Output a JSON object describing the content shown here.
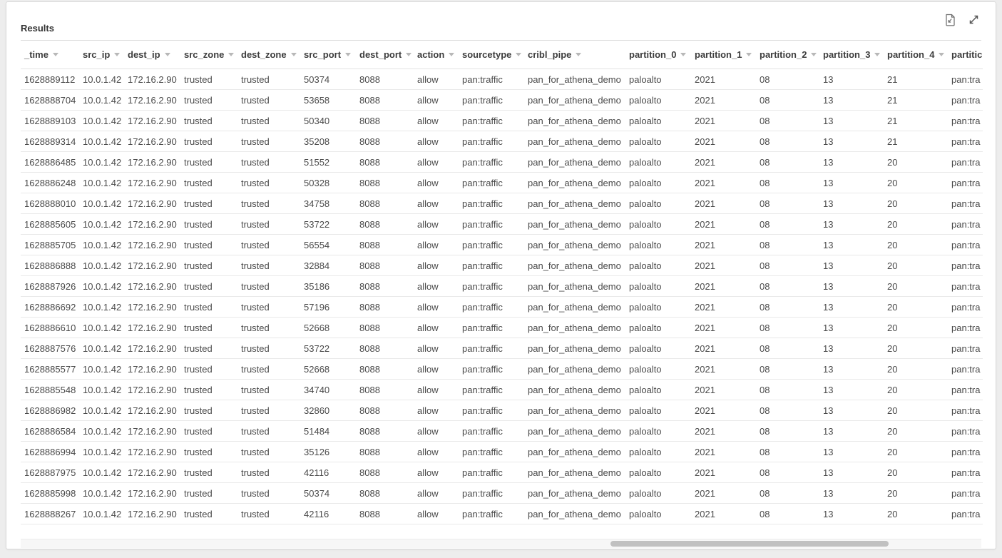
{
  "panel": {
    "title": "Results"
  },
  "toolbar": {
    "export_icon": "document-export",
    "expand_icon": "expand-diagonal"
  },
  "colors": {
    "page_background": "#ededed",
    "card_border": "#d9d9d9",
    "header_text": "#3c3c3c",
    "cell_text": "#4a4a4a",
    "row_border": "#e9e9e9",
    "sort_arrow": "#b8b8b8",
    "scrollbar_thumb": "#c1c1c1"
  },
  "table": {
    "columns": [
      {
        "key": "_time",
        "label": "_time",
        "sort_icon": true
      },
      {
        "key": "src_ip",
        "label": "src_ip",
        "sort_icon": true
      },
      {
        "key": "dest_ip",
        "label": "dest_ip",
        "sort_icon": true
      },
      {
        "key": "src_zone",
        "label": "src_zone",
        "sort_icon": true
      },
      {
        "key": "dest_zone",
        "label": "dest_zone",
        "sort_icon": true
      },
      {
        "key": "src_port",
        "label": "src_port",
        "sort_icon": true
      },
      {
        "key": "dest_port",
        "label": "dest_port",
        "sort_icon": true
      },
      {
        "key": "action",
        "label": "action",
        "sort_icon": true
      },
      {
        "key": "sourcetype",
        "label": "sourcetype",
        "sort_icon": true
      },
      {
        "key": "cribl_pipe",
        "label": "cribl_pipe",
        "sort_icon": true
      },
      {
        "key": "partition_0",
        "label": "partition_0",
        "sort_icon": true
      },
      {
        "key": "partition_1",
        "label": "partition_1",
        "sort_icon": true
      },
      {
        "key": "partition_2",
        "label": "partition_2",
        "sort_icon": true
      },
      {
        "key": "partition_3",
        "label": "partition_3",
        "sort_icon": true
      },
      {
        "key": "partition_4",
        "label": "partition_4",
        "sort_icon": true
      },
      {
        "key": "partition_trunc",
        "label": "partitic",
        "sort_icon": false
      }
    ],
    "rows": [
      [
        "1628889112",
        "10.0.1.42",
        "172.16.2.90",
        "trusted",
        "trusted",
        "50374",
        "8088",
        "allow",
        "pan:traffic",
        "pan_for_athena_demo",
        "paloalto",
        "2021",
        "08",
        "13",
        "21",
        "pan:tra"
      ],
      [
        "1628888704",
        "10.0.1.42",
        "172.16.2.90",
        "trusted",
        "trusted",
        "53658",
        "8088",
        "allow",
        "pan:traffic",
        "pan_for_athena_demo",
        "paloalto",
        "2021",
        "08",
        "13",
        "21",
        "pan:tra"
      ],
      [
        "1628889103",
        "10.0.1.42",
        "172.16.2.90",
        "trusted",
        "trusted",
        "50340",
        "8088",
        "allow",
        "pan:traffic",
        "pan_for_athena_demo",
        "paloalto",
        "2021",
        "08",
        "13",
        "21",
        "pan:tra"
      ],
      [
        "1628889314",
        "10.0.1.42",
        "172.16.2.90",
        "trusted",
        "trusted",
        "35208",
        "8088",
        "allow",
        "pan:traffic",
        "pan_for_athena_demo",
        "paloalto",
        "2021",
        "08",
        "13",
        "21",
        "pan:tra"
      ],
      [
        "1628886485",
        "10.0.1.42",
        "172.16.2.90",
        "trusted",
        "trusted",
        "51552",
        "8088",
        "allow",
        "pan:traffic",
        "pan_for_athena_demo",
        "paloalto",
        "2021",
        "08",
        "13",
        "20",
        "pan:tra"
      ],
      [
        "1628886248",
        "10.0.1.42",
        "172.16.2.90",
        "trusted",
        "trusted",
        "50328",
        "8088",
        "allow",
        "pan:traffic",
        "pan_for_athena_demo",
        "paloalto",
        "2021",
        "08",
        "13",
        "20",
        "pan:tra"
      ],
      [
        "1628888010",
        "10.0.1.42",
        "172.16.2.90",
        "trusted",
        "trusted",
        "34758",
        "8088",
        "allow",
        "pan:traffic",
        "pan_for_athena_demo",
        "paloalto",
        "2021",
        "08",
        "13",
        "20",
        "pan:tra"
      ],
      [
        "1628885605",
        "10.0.1.42",
        "172.16.2.90",
        "trusted",
        "trusted",
        "53722",
        "8088",
        "allow",
        "pan:traffic",
        "pan_for_athena_demo",
        "paloalto",
        "2021",
        "08",
        "13",
        "20",
        "pan:tra"
      ],
      [
        "1628885705",
        "10.0.1.42",
        "172.16.2.90",
        "trusted",
        "trusted",
        "56554",
        "8088",
        "allow",
        "pan:traffic",
        "pan_for_athena_demo",
        "paloalto",
        "2021",
        "08",
        "13",
        "20",
        "pan:tra"
      ],
      [
        "1628886888",
        "10.0.1.42",
        "172.16.2.90",
        "trusted",
        "trusted",
        "32884",
        "8088",
        "allow",
        "pan:traffic",
        "pan_for_athena_demo",
        "paloalto",
        "2021",
        "08",
        "13",
        "20",
        "pan:tra"
      ],
      [
        "1628887926",
        "10.0.1.42",
        "172.16.2.90",
        "trusted",
        "trusted",
        "35186",
        "8088",
        "allow",
        "pan:traffic",
        "pan_for_athena_demo",
        "paloalto",
        "2021",
        "08",
        "13",
        "20",
        "pan:tra"
      ],
      [
        "1628886692",
        "10.0.1.42",
        "172.16.2.90",
        "trusted",
        "trusted",
        "57196",
        "8088",
        "allow",
        "pan:traffic",
        "pan_for_athena_demo",
        "paloalto",
        "2021",
        "08",
        "13",
        "20",
        "pan:tra"
      ],
      [
        "1628886610",
        "10.0.1.42",
        "172.16.2.90",
        "trusted",
        "trusted",
        "52668",
        "8088",
        "allow",
        "pan:traffic",
        "pan_for_athena_demo",
        "paloalto",
        "2021",
        "08",
        "13",
        "20",
        "pan:tra"
      ],
      [
        "1628887576",
        "10.0.1.42",
        "172.16.2.90",
        "trusted",
        "trusted",
        "53722",
        "8088",
        "allow",
        "pan:traffic",
        "pan_for_athena_demo",
        "paloalto",
        "2021",
        "08",
        "13",
        "20",
        "pan:tra"
      ],
      [
        "1628885577",
        "10.0.1.42",
        "172.16.2.90",
        "trusted",
        "trusted",
        "52668",
        "8088",
        "allow",
        "pan:traffic",
        "pan_for_athena_demo",
        "paloalto",
        "2021",
        "08",
        "13",
        "20",
        "pan:tra"
      ],
      [
        "1628885548",
        "10.0.1.42",
        "172.16.2.90",
        "trusted",
        "trusted",
        "34740",
        "8088",
        "allow",
        "pan:traffic",
        "pan_for_athena_demo",
        "paloalto",
        "2021",
        "08",
        "13",
        "20",
        "pan:tra"
      ],
      [
        "1628886982",
        "10.0.1.42",
        "172.16.2.90",
        "trusted",
        "trusted",
        "32860",
        "8088",
        "allow",
        "pan:traffic",
        "pan_for_athena_demo",
        "paloalto",
        "2021",
        "08",
        "13",
        "20",
        "pan:tra"
      ],
      [
        "1628886584",
        "10.0.1.42",
        "172.16.2.90",
        "trusted",
        "trusted",
        "51484",
        "8088",
        "allow",
        "pan:traffic",
        "pan_for_athena_demo",
        "paloalto",
        "2021",
        "08",
        "13",
        "20",
        "pan:tra"
      ],
      [
        "1628886994",
        "10.0.1.42",
        "172.16.2.90",
        "trusted",
        "trusted",
        "35126",
        "8088",
        "allow",
        "pan:traffic",
        "pan_for_athena_demo",
        "paloalto",
        "2021",
        "08",
        "13",
        "20",
        "pan:tra"
      ],
      [
        "1628887975",
        "10.0.1.42",
        "172.16.2.90",
        "trusted",
        "trusted",
        "42116",
        "8088",
        "allow",
        "pan:traffic",
        "pan_for_athena_demo",
        "paloalto",
        "2021",
        "08",
        "13",
        "20",
        "pan:tra"
      ],
      [
        "1628885998",
        "10.0.1.42",
        "172.16.2.90",
        "trusted",
        "trusted",
        "50374",
        "8088",
        "allow",
        "pan:traffic",
        "pan_for_athena_demo",
        "paloalto",
        "2021",
        "08",
        "13",
        "20",
        "pan:tra"
      ],
      [
        "1628888267",
        "10.0.1.42",
        "172.16.2.90",
        "trusted",
        "trusted",
        "42116",
        "8088",
        "allow",
        "pan:traffic",
        "pan_for_athena_demo",
        "paloalto",
        "2021",
        "08",
        "13",
        "20",
        "pan:tra"
      ]
    ]
  }
}
